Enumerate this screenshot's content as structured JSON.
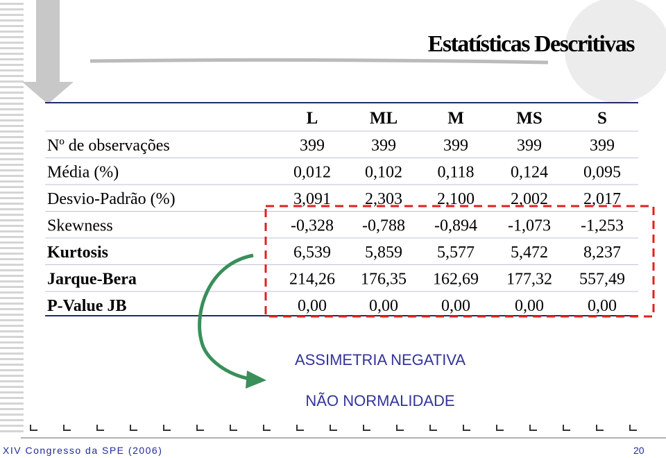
{
  "title": "Estatísticas Descritivas",
  "table": {
    "header": [
      "L",
      "ML",
      "M",
      "MS",
      "S"
    ],
    "rows": [
      {
        "label": "Nº de observações",
        "values": [
          "399",
          "399",
          "399",
          "399",
          "399"
        ]
      },
      {
        "label": "Média (%)",
        "values": [
          "0,012",
          "0,102",
          "0,118",
          "0,124",
          "0,095"
        ]
      },
      {
        "label": "Desvio-Padrão (%)",
        "values": [
          "3,091",
          "2,303",
          "2,100",
          "2,002",
          "2,017"
        ]
      },
      {
        "label": "Skewness",
        "values": [
          "-0,328",
          "-0,788",
          "-0,894",
          "-1,073",
          "-1,253"
        ]
      },
      {
        "label": "Kurtosis",
        "values": [
          "6,539",
          "5,859",
          "5,577",
          "5,472",
          "8,237"
        ]
      },
      {
        "label": "Jarque-Bera",
        "values": [
          "214,26",
          "176,35",
          "162,69",
          "177,32",
          "557,49"
        ]
      },
      {
        "label": "P-Value JB",
        "values": [
          "0,00",
          "0,00",
          "0,00",
          "0,00",
          "0,00"
        ]
      }
    ]
  },
  "annotations": [
    "ASSIMETRIA NEGATIVA",
    "NÃO NORMALIDADE"
  ],
  "footer": {
    "left": "XIV Congresso da SPE (2006)",
    "page": "20"
  }
}
